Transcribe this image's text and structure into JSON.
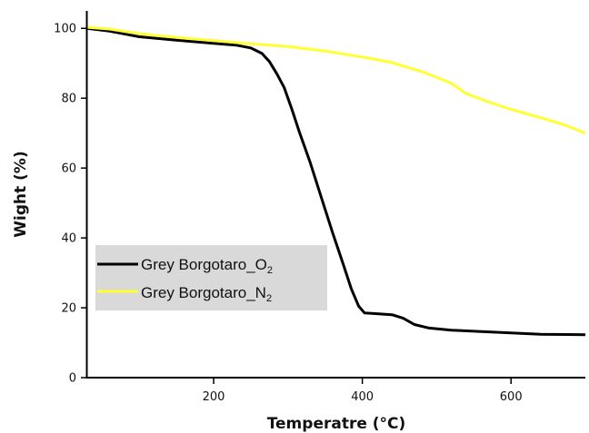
{
  "chart_data": {
    "type": "line",
    "xlabel": "Temperatre (°C)",
    "ylabel": "Wight (%)",
    "xlim": [
      30,
      700
    ],
    "ylim": [
      0,
      105
    ],
    "xticks": [
      200,
      400,
      600
    ],
    "yticks": [
      0,
      20,
      40,
      60,
      80,
      100
    ],
    "legend_position": "lower-left",
    "grid": false,
    "series": [
      {
        "name": "Grey Borgotaro_O",
        "name_subscript": "2",
        "color": "#000000",
        "points": [
          [
            30,
            100
          ],
          [
            60,
            99.2
          ],
          [
            100,
            97.6
          ],
          [
            150,
            96.6
          ],
          [
            200,
            95.7
          ],
          [
            230,
            95.2
          ],
          [
            250,
            94.4
          ],
          [
            265,
            92.8
          ],
          [
            275,
            90.5
          ],
          [
            285,
            87
          ],
          [
            295,
            83
          ],
          [
            305,
            77
          ],
          [
            315,
            70.5
          ],
          [
            330,
            61.5
          ],
          [
            345,
            51.5
          ],
          [
            360,
            41.5
          ],
          [
            375,
            32
          ],
          [
            385,
            25.5
          ],
          [
            395,
            20.5
          ],
          [
            403,
            18.5
          ],
          [
            420,
            18.3
          ],
          [
            440,
            18
          ],
          [
            455,
            17
          ],
          [
            470,
            15.2
          ],
          [
            490,
            14.2
          ],
          [
            520,
            13.6
          ],
          [
            560,
            13.2
          ],
          [
            600,
            12.8
          ],
          [
            640,
            12.4
          ],
          [
            700,
            12.3
          ]
        ]
      },
      {
        "name": "Grey Borgotaro_N",
        "name_subscript": "2",
        "color": "#ffff33",
        "points": [
          [
            30,
            100.3
          ],
          [
            60,
            99.8
          ],
          [
            90,
            98.8
          ],
          [
            120,
            98
          ],
          [
            160,
            97.2
          ],
          [
            200,
            96.5
          ],
          [
            250,
            95.6
          ],
          [
            300,
            94.8
          ],
          [
            350,
            93.5
          ],
          [
            400,
            91.8
          ],
          [
            440,
            90.2
          ],
          [
            480,
            87.6
          ],
          [
            500,
            86
          ],
          [
            520,
            84.2
          ],
          [
            540,
            81.3
          ],
          [
            570,
            78.9
          ],
          [
            600,
            76.8
          ],
          [
            640,
            74.4
          ],
          [
            670,
            72.5
          ],
          [
            700,
            70
          ]
        ]
      }
    ]
  }
}
